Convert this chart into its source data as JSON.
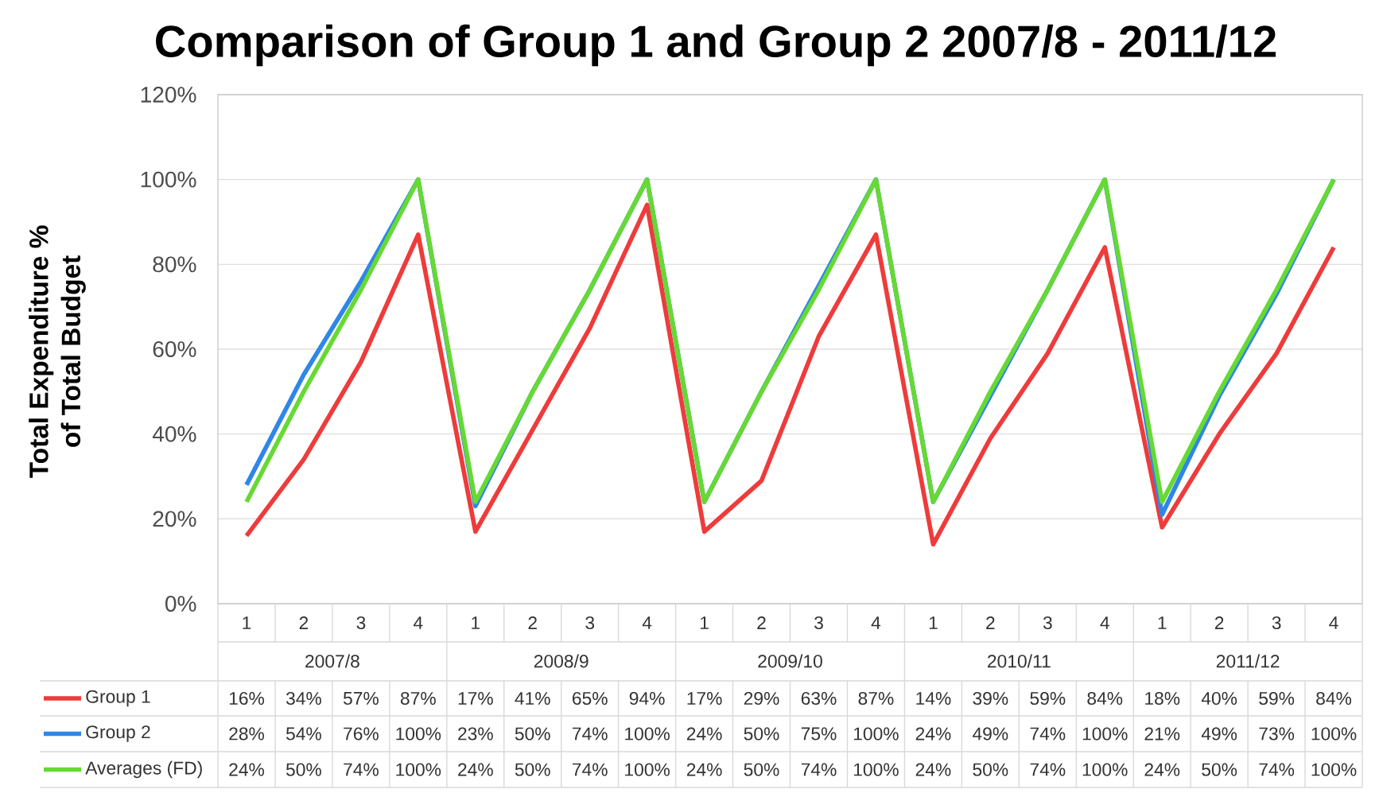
{
  "chart_data": {
    "type": "line",
    "title": "Comparison of Group 1 and Group 2 2007/8 - 2011/12",
    "ylabel": "Total Expenditure %\nof Total Budget",
    "categories": [
      "1",
      "2",
      "3",
      "4",
      "1",
      "2",
      "3",
      "4",
      "1",
      "2",
      "3",
      "4",
      "1",
      "2",
      "3",
      "4",
      "1",
      "2",
      "3",
      "4"
    ],
    "annotations": [
      "2007/8",
      "2008/9",
      "2009/10",
      "2010/11",
      "2011/12"
    ],
    "series": [
      {
        "name": "Group 1",
        "color": "#ee3b3b",
        "values": [
          16,
          34,
          57,
          87,
          17,
          41,
          65,
          94,
          17,
          29,
          63,
          87,
          14,
          39,
          59,
          84,
          18,
          40,
          59,
          84
        ],
        "value_labels": [
          "16%",
          "34%",
          "57%",
          "87%",
          "17%",
          "41%",
          "65%",
          "94%",
          "17%",
          "29%",
          "63%",
          "87%",
          "14%",
          "39%",
          "59%",
          "84%",
          "18%",
          "40%",
          "59%",
          "84%"
        ]
      },
      {
        "name": "Group 2",
        "color": "#2f86e8",
        "values": [
          28,
          54,
          76,
          100,
          23,
          50,
          74,
          100,
          24,
          50,
          75,
          100,
          24,
          49,
          74,
          100,
          21,
          49,
          73,
          100
        ],
        "value_labels": [
          "28%",
          "54%",
          "76%",
          "100%",
          "23%",
          "50%",
          "74%",
          "100%",
          "24%",
          "50%",
          "75%",
          "100%",
          "24%",
          "49%",
          "74%",
          "100%",
          "21%",
          "49%",
          "73%",
          "100%"
        ]
      },
      {
        "name": "Averages (FD)",
        "color": "#66d933",
        "values": [
          24,
          50,
          74,
          100,
          24,
          50,
          74,
          100,
          24,
          50,
          74,
          100,
          24,
          50,
          74,
          100,
          24,
          50,
          74,
          100
        ],
        "value_labels": [
          "24%",
          "50%",
          "74%",
          "100%",
          "24%",
          "50%",
          "74%",
          "100%",
          "24%",
          "50%",
          "74%",
          "100%",
          "24%",
          "50%",
          "74%",
          "100%",
          "24%",
          "50%",
          "74%",
          "100%"
        ]
      }
    ],
    "ylim": [
      0,
      120
    ],
    "yticks": [
      {
        "value": 0,
        "label": "0%"
      },
      {
        "value": 20,
        "label": "20%"
      },
      {
        "value": 40,
        "label": "40%"
      },
      {
        "value": 60,
        "label": "60%"
      },
      {
        "value": 80,
        "label": "80%"
      },
      {
        "value": 100,
        "label": "100%"
      },
      {
        "value": 120,
        "label": "120%"
      }
    ],
    "grid": "y",
    "legend": "bottom"
  }
}
